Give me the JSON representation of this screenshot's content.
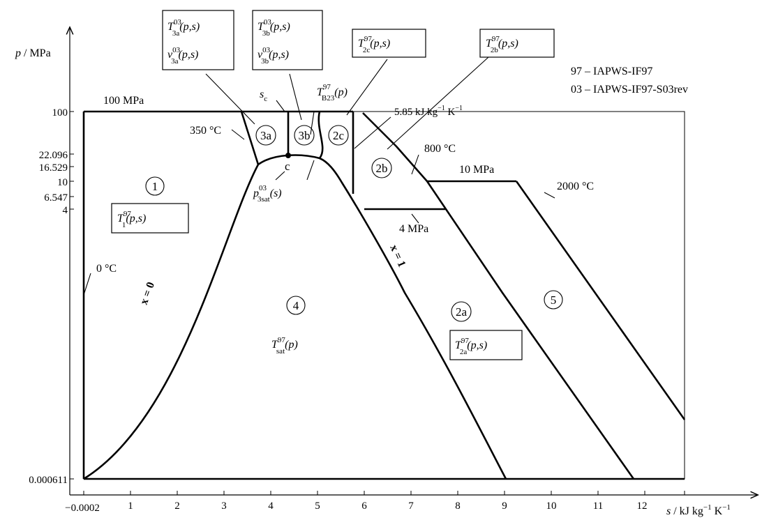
{
  "axes": {
    "y_label_var": "p",
    "y_label_unit": " / MPa",
    "x_label_var": "s",
    "x_label_unit": " / kJ kg",
    "x_label_sup1": "−1",
    "x_label_k": " K",
    "x_label_sup2": "−1",
    "x_ticks": [
      "−0.0002",
      "1",
      "2",
      "3",
      "4",
      "5",
      "6",
      "7",
      "8",
      "9",
      "10",
      "11",
      "12"
    ],
    "y_ticks": [
      "100",
      "22.096",
      "16.529",
      "10",
      "6.547",
      "4",
      "0.000611"
    ]
  },
  "legend": {
    "line1": "97 – IAPWS-IF97",
    "line2": "03 – IAPWS-IF97-S03rev"
  },
  "regions": {
    "r1": "1",
    "r2a": "2a",
    "r2b": "2b",
    "r2c": "2c",
    "r3a": "3a",
    "r3b": "3b",
    "r4": "4",
    "r5": "5",
    "crit": "c"
  },
  "annotations": {
    "p100": "100 MPa",
    "t350": "350 °C",
    "t0": "0 °C",
    "t800": "800 °C",
    "p10": "10 MPa",
    "t2000": "2000 °C",
    "p4": "4 MPa",
    "s585": "5.85",
    "s585_unit": " kJ kg",
    "s585_sup": "−1",
    "s585_k": " K",
    "s585_sup2": "−1",
    "x0": "x = 0",
    "x1": "x = 1",
    "sc": "s",
    "sc_sub": "c",
    "tb23_T": "T",
    "tb23_sup": "97",
    "tb23_sub": "B23",
    "tb23_arg": "(p)",
    "p3sat_p": "p",
    "p3sat_sup": "03",
    "p3sat_sub": "3sat",
    "p3sat_arg": "(s)"
  },
  "formulas": {
    "T3a": {
      "sym": "T",
      "sup": "03",
      "sub": "3a",
      "arg": "(p,s)"
    },
    "v3a": {
      "sym": "v",
      "sup": "03",
      "sub": "3a",
      "arg": "(p,s)"
    },
    "T3b": {
      "sym": "T",
      "sup": "03",
      "sub": "3b",
      "arg": "(p,s)"
    },
    "v3b": {
      "sym": "v",
      "sup": "03",
      "sub": "3b",
      "arg": "(p,s)"
    },
    "T2c": {
      "sym": "T",
      "sup": "97",
      "sub": "2c",
      "arg": "(p,s)"
    },
    "T2b": {
      "sym": "T",
      "sup": "97",
      "sub": "2b",
      "arg": "(p,s)"
    },
    "T1": {
      "sym": "T",
      "sup": "97",
      "sub": "1",
      "arg": "(p,s)"
    },
    "T2a": {
      "sym": "T",
      "sup": "97",
      "sub": "2a",
      "arg": "(p,s)"
    },
    "Tsat": {
      "sym": "T",
      "sup": "97",
      "sub": "sat",
      "arg": "(p)"
    }
  }
}
